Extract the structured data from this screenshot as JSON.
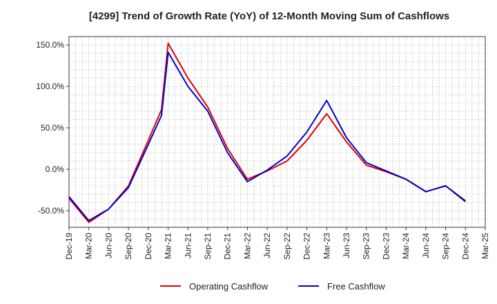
{
  "chart_data": {
    "type": "line",
    "title": "[4299]  Trend of Growth Rate (YoY) of 12-Month Moving Sum of Cashflows",
    "xlabel": "",
    "ylabel": "",
    "ylim": [
      -70,
      160
    ],
    "yticks": [
      150,
      100,
      50,
      0,
      -50
    ],
    "ytick_labels": [
      "150.0%",
      "100.0%",
      "50.0%",
      "0.0%",
      "-50.0%"
    ],
    "x_labels": [
      "Dec-19",
      "Mar-20",
      "Jun-20",
      "Sep-20",
      "Dec-20",
      "Mar-21",
      "Jun-21",
      "Sep-21",
      "Dec-21",
      "Mar-22",
      "Jun-22",
      "Sep-22",
      "Dec-22",
      "Mar-23",
      "Jun-23",
      "Sep-23",
      "Dec-23",
      "Mar-24",
      "Jun-24",
      "Sep-24",
      "Dec-24",
      "Mar-25"
    ],
    "x_months": [
      "Dec-19",
      "Jan-20",
      "Feb-20",
      "Mar-20",
      "Apr-20",
      "May-20",
      "Jun-20",
      "Jul-20",
      "Aug-20",
      "Sep-20",
      "Oct-20",
      "Nov-20",
      "Dec-20",
      "Jan-21",
      "Feb-21",
      "Mar-21",
      "Apr-21",
      "May-21",
      "Jun-21",
      "Jul-21",
      "Aug-21",
      "Sep-21",
      "Oct-21",
      "Nov-21",
      "Dec-21",
      "Jan-22",
      "Feb-22",
      "Mar-22",
      "Apr-22",
      "May-22",
      "Jun-22",
      "Jul-22",
      "Aug-22",
      "Sep-22",
      "Oct-22",
      "Nov-22",
      "Dec-22",
      "Jan-23",
      "Feb-23",
      "Mar-23",
      "Apr-23",
      "May-23",
      "Jun-23",
      "Jul-23",
      "Aug-23",
      "Sep-23",
      "Oct-23",
      "Nov-23",
      "Dec-23",
      "Jan-24",
      "Feb-24",
      "Mar-24",
      "Apr-24",
      "May-24",
      "Jun-24",
      "Jul-24",
      "Aug-24",
      "Sep-24",
      "Oct-24",
      "Nov-24",
      "Dec-24",
      "Jan-25",
      "Feb-25",
      "Mar-25"
    ],
    "grid": true,
    "legend_position": "bottom-center",
    "series": [
      {
        "name": "Operating Cashflow",
        "color": "#dd0000",
        "points": [
          [
            "Dec-19",
            -35
          ],
          [
            "Mar-20",
            -64
          ],
          [
            "Jun-20",
            -48
          ],
          [
            "Sep-20",
            -20
          ],
          [
            "Dec-20",
            35
          ],
          [
            "Feb-21",
            72
          ],
          [
            "Mar-21",
            152
          ],
          [
            "Jun-21",
            110
          ],
          [
            "Sep-21",
            75
          ],
          [
            "Dec-21",
            25
          ],
          [
            "Mar-22",
            -12
          ],
          [
            "Jun-22",
            -2
          ],
          [
            "Sep-22",
            10
          ],
          [
            "Dec-22",
            35
          ],
          [
            "Mar-23",
            67
          ],
          [
            "Jun-23",
            33
          ],
          [
            "Sep-23",
            5
          ],
          [
            "Dec-23",
            -3
          ],
          [
            "Mar-24",
            -12
          ],
          [
            "Jun-24",
            -27
          ],
          [
            "Sep-24",
            -20
          ],
          [
            "Dec-24",
            -38
          ]
        ]
      },
      {
        "name": "Free Cashflow",
        "color": "#0000cc",
        "points": [
          [
            "Dec-19",
            -33
          ],
          [
            "Mar-20",
            -62
          ],
          [
            "Jun-20",
            -48
          ],
          [
            "Sep-20",
            -22
          ],
          [
            "Dec-20",
            30
          ],
          [
            "Feb-21",
            65
          ],
          [
            "Mar-21",
            141
          ],
          [
            "Jun-21",
            100
          ],
          [
            "Sep-21",
            70
          ],
          [
            "Dec-21",
            20
          ],
          [
            "Mar-22",
            -15
          ],
          [
            "Jun-22",
            -1
          ],
          [
            "Sep-22",
            16
          ],
          [
            "Dec-22",
            45
          ],
          [
            "Mar-23",
            83
          ],
          [
            "Jun-23",
            38
          ],
          [
            "Sep-23",
            8
          ],
          [
            "Dec-23",
            -2
          ],
          [
            "Mar-24",
            -12
          ],
          [
            "Jun-24",
            -27
          ],
          [
            "Sep-24",
            -20
          ],
          [
            "Dec-24",
            -39
          ]
        ]
      }
    ]
  }
}
